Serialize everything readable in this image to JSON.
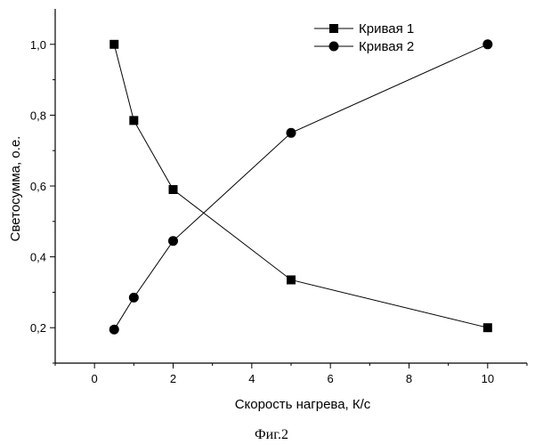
{
  "chart_data": {
    "type": "line",
    "title": "",
    "xlabel": "Скорость нагрева, К/с",
    "ylabel": "Светосумма, о.е.",
    "caption": "Фиг.2",
    "xlim": [
      -1,
      11
    ],
    "ylim": [
      0.1,
      1.1
    ],
    "x_ticks": [
      0,
      2,
      4,
      6,
      8,
      10
    ],
    "x_tick_labels": [
      "0",
      "2",
      "4",
      "6",
      "8",
      "10"
    ],
    "y_ticks": [
      0.2,
      0.4,
      0.6,
      0.8,
      1.0
    ],
    "y_tick_labels": [
      "0,2",
      "0,4",
      "0,6",
      "0,8",
      "1,0"
    ],
    "grid": false,
    "legend_position": "top-right",
    "series": [
      {
        "name": "Кривая 1",
        "marker": "square",
        "color": "#000000",
        "points": [
          {
            "x": 0.5,
            "y": 1.0
          },
          {
            "x": 1.0,
            "y": 0.785
          },
          {
            "x": 2.0,
            "y": 0.59
          },
          {
            "x": 5.0,
            "y": 0.335
          },
          {
            "x": 10.0,
            "y": 0.2
          }
        ]
      },
      {
        "name": "Кривая 2",
        "marker": "circle",
        "color": "#000000",
        "points": [
          {
            "x": 0.5,
            "y": 0.195
          },
          {
            "x": 1.0,
            "y": 0.285
          },
          {
            "x": 2.0,
            "y": 0.445
          },
          {
            "x": 5.0,
            "y": 0.75
          },
          {
            "x": 10.0,
            "y": 1.0
          }
        ]
      }
    ]
  }
}
